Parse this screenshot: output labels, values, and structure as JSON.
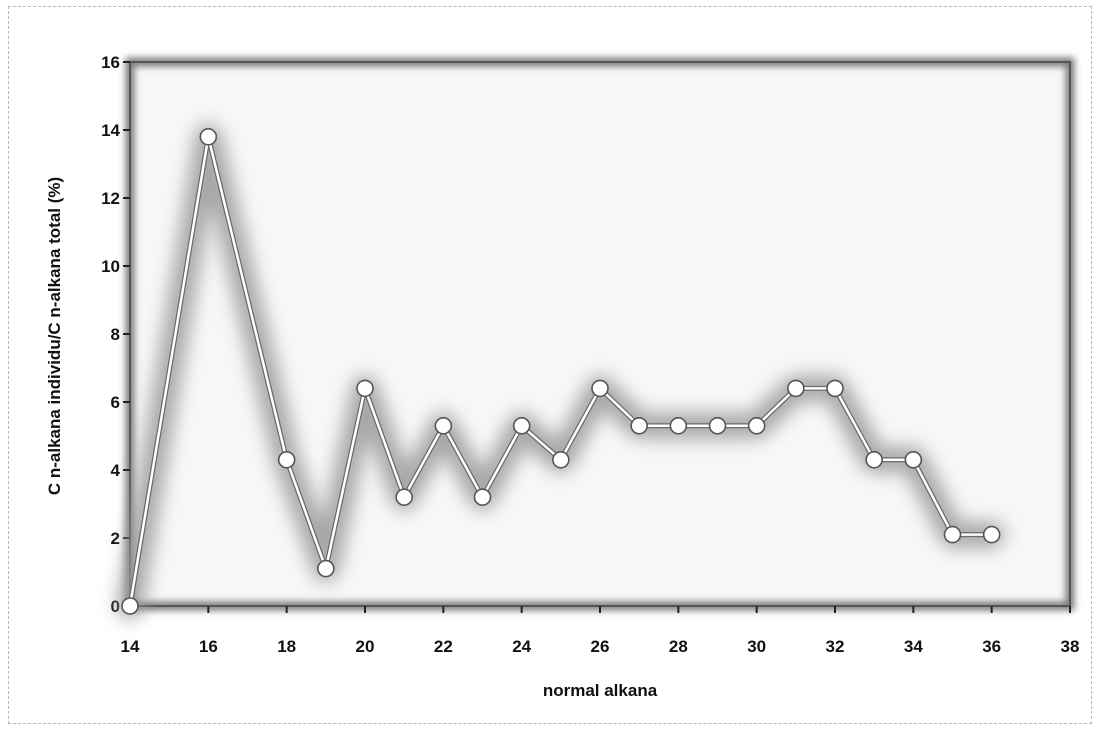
{
  "chart_data": {
    "type": "line",
    "title": "",
    "xlabel": "normal alkana",
    "ylabel": "C n-alkana individu/C n-alkana total (%)",
    "xlim": [
      14,
      38
    ],
    "ylim": [
      0,
      16
    ],
    "x_ticks": [
      14,
      16,
      18,
      20,
      22,
      24,
      26,
      28,
      30,
      32,
      34,
      36,
      38
    ],
    "y_ticks": [
      0,
      2,
      4,
      6,
      8,
      10,
      12,
      14,
      16
    ],
    "grid": false,
    "legend": "none",
    "series": [
      {
        "x": [
          14,
          16,
          18,
          19,
          20,
          21,
          22,
          23,
          24,
          25,
          26,
          27,
          28,
          29,
          30,
          31,
          32,
          33,
          34,
          35,
          36
        ],
        "y": [
          0,
          13.8,
          4.3,
          1.1,
          6.4,
          3.2,
          5.3,
          3.2,
          5.3,
          4.3,
          6.4,
          5.3,
          5.3,
          5.3,
          5.3,
          6.4,
          6.4,
          4.3,
          4.3,
          2.1,
          2.1
        ]
      }
    ],
    "colors": {
      "plot_border": "#555555",
      "line": "#ffffff",
      "marker_fill": "#ffffff",
      "glow": "#9a9a9a"
    }
  }
}
